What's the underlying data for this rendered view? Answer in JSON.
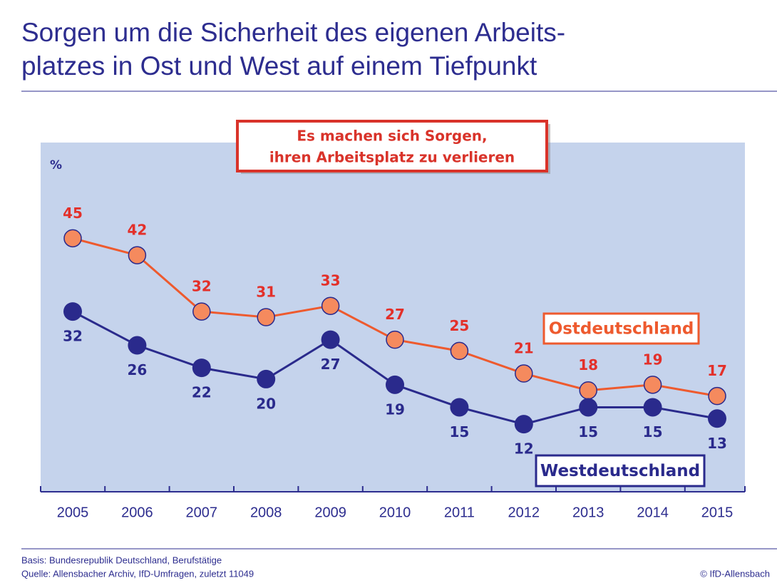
{
  "chart_data": {
    "type": "line",
    "title": [
      "Sorgen um die Sicherheit des eigenen Arbeits-",
      "platzes in Ost und West auf einem Tiefpunkt"
    ],
    "annotation": [
      "Es machen sich Sorgen,",
      "ihren Arbeitsplatz zu verlieren"
    ],
    "y_label": "%",
    "categories": [
      "2005",
      "2006",
      "2007",
      "2008",
      "2009",
      "2010",
      "2011",
      "2012",
      "2013",
      "2014",
      "2015"
    ],
    "series": [
      {
        "name": "Ostdeutschland",
        "color": "#ee5a2e",
        "values": [
          45,
          42,
          32,
          31,
          33,
          27,
          25,
          21,
          18,
          19,
          17
        ]
      },
      {
        "name": "Westdeutschland",
        "color": "#2a2a8c",
        "values": [
          32,
          26,
          22,
          20,
          27,
          19,
          15,
          12,
          15,
          15,
          13
        ]
      }
    ],
    "ylim": [
      0,
      62
    ],
    "notes": [
      "Basis: Bundesrepublik Deutschland, Berufstätige",
      "Quelle: Allensbacher Archiv, IfD-Umfragen, zuletzt 11049"
    ],
    "credit": "© IfD-Allensbach"
  }
}
